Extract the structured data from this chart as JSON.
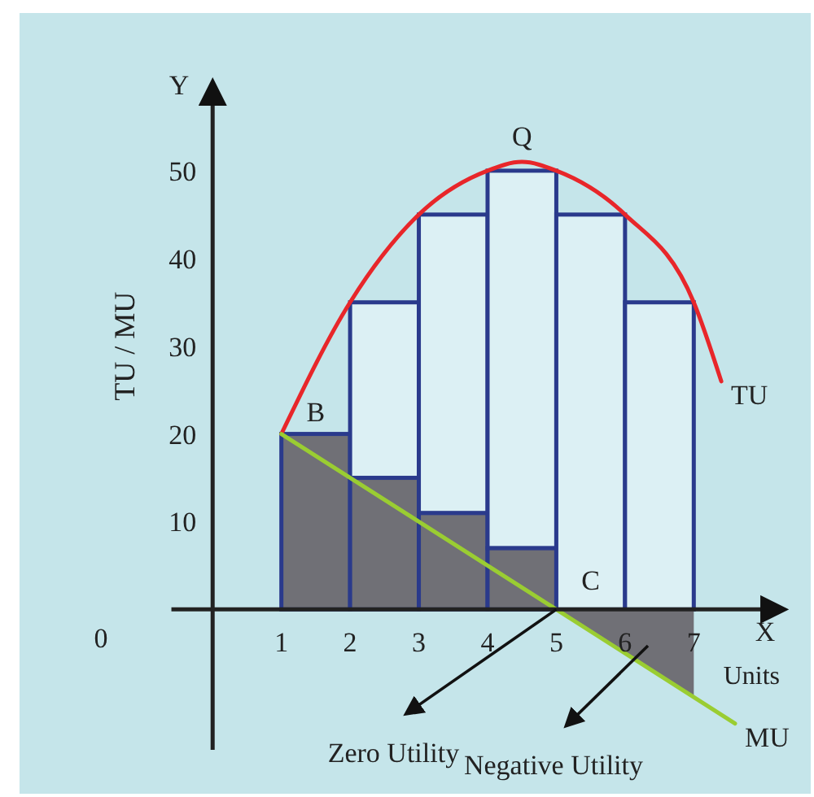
{
  "chart_data": {
    "type": "bar",
    "xlabel": "Units",
    "ylabel": "TU / MU",
    "xlim": [
      -0.6,
      8.3
    ],
    "ylim": [
      -16,
      60
    ],
    "xticks": [
      1,
      2,
      3,
      4,
      5,
      6,
      7
    ],
    "yticks": [
      10,
      20,
      30,
      40,
      50
    ],
    "series": [
      {
        "x": [
          1.5,
          2.5,
          3.5,
          4.5
        ],
        "values": [
          20,
          15,
          11,
          7
        ],
        "color": "#707076"
      },
      {
        "x": [
          2.5,
          3.5,
          4.5,
          5.5,
          6.5
        ],
        "base": [
          15,
          11,
          7,
          0,
          0
        ],
        "values": [
          20,
          34,
          43,
          45,
          35
        ],
        "color": "#dcf0f4"
      },
      {
        "type": "area",
        "x": [
          5,
          7
        ],
        "values": [
          0,
          -10
        ],
        "color": "#707076"
      },
      {
        "type": "line",
        "name": "TU",
        "x": [
          1,
          2,
          3,
          4,
          4.5,
          5,
          6,
          7,
          7.4
        ],
        "values": [
          20,
          35,
          45,
          50,
          51,
          50,
          45,
          35,
          26
        ],
        "color": "#e8262a"
      },
      {
        "type": "line",
        "name": "MU",
        "x": [
          1,
          5,
          7.6
        ],
        "values": [
          20,
          0,
          -13
        ],
        "color": "#9acd32"
      }
    ],
    "annotations": [
      {
        "text": "B",
        "x": 1.5,
        "y": 20
      },
      {
        "text": "Q",
        "x": 4.5,
        "y": 51
      },
      {
        "text": "C",
        "x": 5.5,
        "y": 0
      },
      {
        "text": "Zero Utility",
        "x": 5,
        "y": 0
      },
      "Negative Utility",
      "X",
      "Y",
      "0"
    ]
  }
}
